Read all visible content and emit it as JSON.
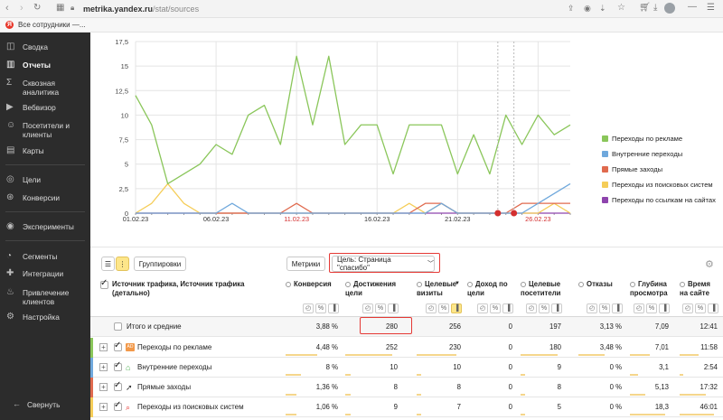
{
  "browser": {
    "url_host": "metrika.yandex.ru",
    "url_path": "/stat/sources",
    "bookmark": "Все сотрудники —..."
  },
  "sidebar": {
    "items": [
      {
        "label": "Сводка",
        "icon": "grid-icon"
      },
      {
        "label": "Отчеты",
        "icon": "bar-chart-icon",
        "active": true
      },
      {
        "label": "Сквозная аналитика",
        "icon": "sigma-icon"
      },
      {
        "label": "Вебвизор",
        "icon": "play-icon"
      },
      {
        "label": "Посетители и клиенты",
        "icon": "people-icon"
      },
      {
        "label": "Карты",
        "icon": "map-icon"
      },
      {
        "label": "Цели",
        "icon": "target-icon"
      },
      {
        "label": "Конверсии",
        "icon": "conversion-icon"
      },
      {
        "label": "Эксперименты",
        "icon": "experiment-icon"
      },
      {
        "label": "Сегменты",
        "icon": "pie-icon"
      },
      {
        "label": "Интеграции",
        "icon": "puzzle-icon"
      },
      {
        "label": "Привлечение клиентов",
        "icon": "fire-icon"
      },
      {
        "label": "Настройка",
        "icon": "gear-icon"
      }
    ],
    "collapse": "Свернуть"
  },
  "chart_data": {
    "type": "line",
    "ylim": [
      0,
      17.5
    ],
    "yticks": [
      "0",
      "2,5",
      "5",
      "7,5",
      "10",
      "12,5",
      "15",
      "17,5"
    ],
    "xticks": [
      {
        "label": "01.02.23",
        "day": 1,
        "weekend": false
      },
      {
        "label": "06.02.23",
        "day": 6,
        "weekend": false
      },
      {
        "label": "11.02.23",
        "day": 11,
        "weekend": true
      },
      {
        "label": "16.02.23",
        "day": 16,
        "weekend": false
      },
      {
        "label": "21.02.23",
        "day": 21,
        "weekend": false
      },
      {
        "label": "26.02.23",
        "day": 26,
        "weekend": true
      }
    ],
    "days": [
      1,
      2,
      3,
      4,
      5,
      6,
      7,
      8,
      9,
      10,
      11,
      12,
      13,
      14,
      15,
      16,
      17,
      18,
      19,
      20,
      21,
      22,
      23,
      24,
      25,
      26,
      27,
      28
    ],
    "series": [
      {
        "name": "Переходы по рекламе",
        "color": "#8ac65a",
        "values": [
          12,
          9,
          3,
          4,
          5,
          7,
          6,
          10,
          11,
          7,
          16,
          9,
          16,
          7,
          9,
          9,
          4,
          9,
          9,
          9,
          4,
          8,
          4,
          10,
          7,
          10,
          8,
          9
        ]
      },
      {
        "name": "Внутренние переходы",
        "color": "#6fa8dc",
        "values": [
          0,
          0,
          0,
          0,
          0,
          0,
          1,
          0,
          0,
          0,
          0,
          0,
          0,
          0,
          0,
          0,
          0,
          0,
          0,
          1,
          0,
          0,
          0,
          0,
          0,
          1,
          2,
          3
        ]
      },
      {
        "name": "Прямые заходы",
        "color": "#e06a4e",
        "values": [
          0,
          0,
          0,
          0,
          0,
          0,
          0,
          0,
          0,
          0,
          1,
          0,
          0,
          0,
          0,
          0,
          0,
          0,
          1,
          1,
          0,
          0,
          0,
          0,
          1,
          1,
          1,
          1
        ]
      },
      {
        "name": "Переходы из поисковых систем",
        "color": "#f5cd58",
        "values": [
          0,
          1,
          3,
          1,
          0,
          0,
          0,
          0,
          0,
          0,
          0,
          0,
          0,
          0,
          0,
          0,
          0,
          1,
          0,
          1,
          0,
          0,
          0,
          0,
          0,
          0,
          1,
          0
        ]
      },
      {
        "name": "Переходы по ссылкам на сайтах",
        "color": "#8e44ad",
        "values": [
          0,
          0,
          0,
          0,
          0,
          0,
          0,
          0,
          0,
          0,
          0,
          0,
          0,
          0,
          0,
          0,
          0,
          0,
          0,
          0,
          0,
          0,
          0,
          0,
          0,
          0,
          0,
          0
        ]
      }
    ],
    "markers": [
      23.5,
      24.5
    ]
  },
  "toolbar": {
    "grouping": "Группировки",
    "metrics": "Метрики",
    "goal": "Цель: Страница \"спасибо\""
  },
  "table": {
    "dimension_header": "Источник трафика, Источник трафика (детально)",
    "columns": [
      {
        "label": "Конверсия"
      },
      {
        "label": "Достижения цели"
      },
      {
        "label": "Целевые визиты"
      },
      {
        "label": "Доход по цели"
      },
      {
        "label": "Целевые посетители"
      },
      {
        "label": "Отказы"
      },
      {
        "label": "Глубина просмотра"
      },
      {
        "label": "Время на сайте"
      }
    ],
    "totals": {
      "label": "Итого и средние",
      "values": [
        "3,88 %",
        "280",
        "256",
        "0",
        "197",
        "3,13 %",
        "7,09",
        "12:41"
      ]
    },
    "rows": [
      {
        "label": "Переходы по рекламе",
        "icon": "ad-icon",
        "color": "#8ac65a",
        "values": [
          "4,48 %",
          "252",
          "230",
          "0",
          "180",
          "3,48 %",
          "7,01",
          "11:58"
        ],
        "bars": [
          0.6,
          0.9,
          0.9,
          0,
          0.9,
          0.6,
          0.5,
          0.5
        ]
      },
      {
        "label": "Внутренние переходы",
        "icon": "house-icon",
        "color": "#6fa8dc",
        "values": [
          "8 %",
          "10",
          "10",
          "0",
          "9",
          "0 %",
          "3,1",
          "2:54"
        ],
        "bars": [
          0.3,
          0.1,
          0.1,
          0,
          0.1,
          0,
          0.2,
          0.1
        ]
      },
      {
        "label": "Прямые заходы",
        "icon": "cursor-icon",
        "color": "#e06a4e",
        "values": [
          "1,36 %",
          "8",
          "8",
          "0",
          "8",
          "0 %",
          "5,13",
          "17:32"
        ],
        "bars": [
          0.2,
          0.1,
          0.1,
          0,
          0.1,
          0,
          0.4,
          0.7
        ]
      },
      {
        "label": "Переходы из поисковых систем",
        "icon": "search-icon",
        "color": "#f5cd58",
        "values": [
          "1,06 %",
          "9",
          "7",
          "0",
          "5",
          "0 %",
          "18,3",
          "46:01"
        ],
        "bars": [
          0.2,
          0.1,
          0.1,
          0,
          0.1,
          0,
          0.9,
          0.9
        ]
      }
    ]
  }
}
